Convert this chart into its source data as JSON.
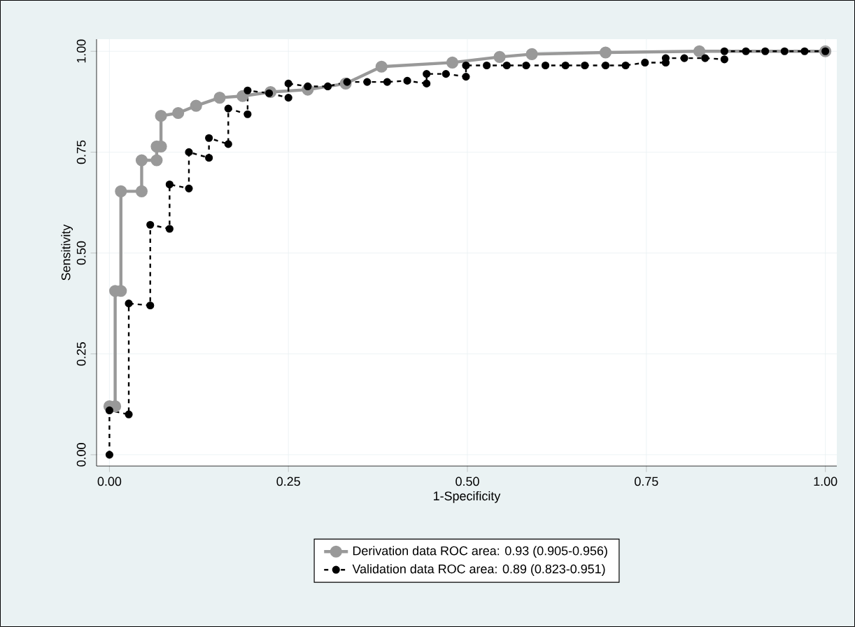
{
  "chart_data": {
    "type": "line",
    "xlabel": "1-Specificity",
    "ylabel": "Sensitivity",
    "xlim": [
      -0.018,
      1.016
    ],
    "ylim": [
      -0.028,
      1.03
    ],
    "xticks": [
      {
        "value": 0,
        "label": "0.00"
      },
      {
        "value": 0.25,
        "label": "0.25"
      },
      {
        "value": 0.5,
        "label": "0.50"
      },
      {
        "value": 0.75,
        "label": "0.75"
      },
      {
        "value": 1,
        "label": "1.00"
      }
    ],
    "yticks": [
      {
        "value": 0,
        "label": "0.00"
      },
      {
        "value": 0.25,
        "label": "0.25"
      },
      {
        "value": 0.5,
        "label": "0.50"
      },
      {
        "value": 0.75,
        "label": "0.75"
      },
      {
        "value": 1,
        "label": "1.00"
      }
    ],
    "grid": true,
    "legend": "bottom",
    "series": [
      {
        "name": "Derivation data ROC area: 0.93 (0.905-0.956)",
        "color": "#999999",
        "marker": "circle",
        "line_style": "solid",
        "x": [
          0,
          0.008,
          0.008,
          0.016,
          0.016,
          0.045,
          0.045,
          0.066,
          0.066,
          0.072,
          0.072,
          0.096,
          0.121,
          0.154,
          0.186,
          0.225,
          0.277,
          0.33,
          0.38,
          0.479,
          0.545,
          0.59,
          0.693,
          0.824,
          1
        ],
        "values": [
          0.12,
          0.12,
          0.406,
          0.406,
          0.653,
          0.653,
          0.73,
          0.73,
          0.764,
          0.764,
          0.84,
          0.847,
          0.865,
          0.885,
          0.889,
          0.899,
          0.905,
          0.92,
          0.962,
          0.972,
          0.986,
          0.993,
          0.997,
          1,
          1
        ]
      },
      {
        "name": "Validation data ROC area: 0.89 (0.823-0.951)",
        "color": "#000000",
        "marker": "circle",
        "line_style": "dashed",
        "x": [
          0,
          0,
          0.027,
          0.027,
          0.057,
          0.057,
          0.084,
          0.084,
          0.111,
          0.111,
          0.139,
          0.139,
          0.166,
          0.166,
          0.193,
          0.193,
          0.223,
          0.25,
          0.25,
          0.277,
          0.305,
          0.332,
          0.36,
          0.388,
          0.416,
          0.443,
          0.443,
          0.47,
          0.498,
          0.498,
          0.527,
          0.555,
          0.582,
          0.609,
          0.637,
          0.664,
          0.693,
          0.721,
          0.748,
          0.777,
          0.777,
          0.803,
          0.832,
          0.859,
          0.859,
          0.889,
          0.916,
          0.943,
          0.971,
          1
        ],
        "values": [
          0,
          0.11,
          0.1,
          0.375,
          0.37,
          0.57,
          0.56,
          0.67,
          0.66,
          0.75,
          0.736,
          0.785,
          0.77,
          0.858,
          0.844,
          0.903,
          0.896,
          0.885,
          0.92,
          0.913,
          0.913,
          0.924,
          0.924,
          0.924,
          0.927,
          0.92,
          0.944,
          0.944,
          0.937,
          0.965,
          0.965,
          0.965,
          0.965,
          0.965,
          0.965,
          0.965,
          0.965,
          0.965,
          0.972,
          0.972,
          0.983,
          0.983,
          0.983,
          0.98,
          1,
          1,
          1,
          1,
          1,
          1
        ]
      }
    ]
  }
}
